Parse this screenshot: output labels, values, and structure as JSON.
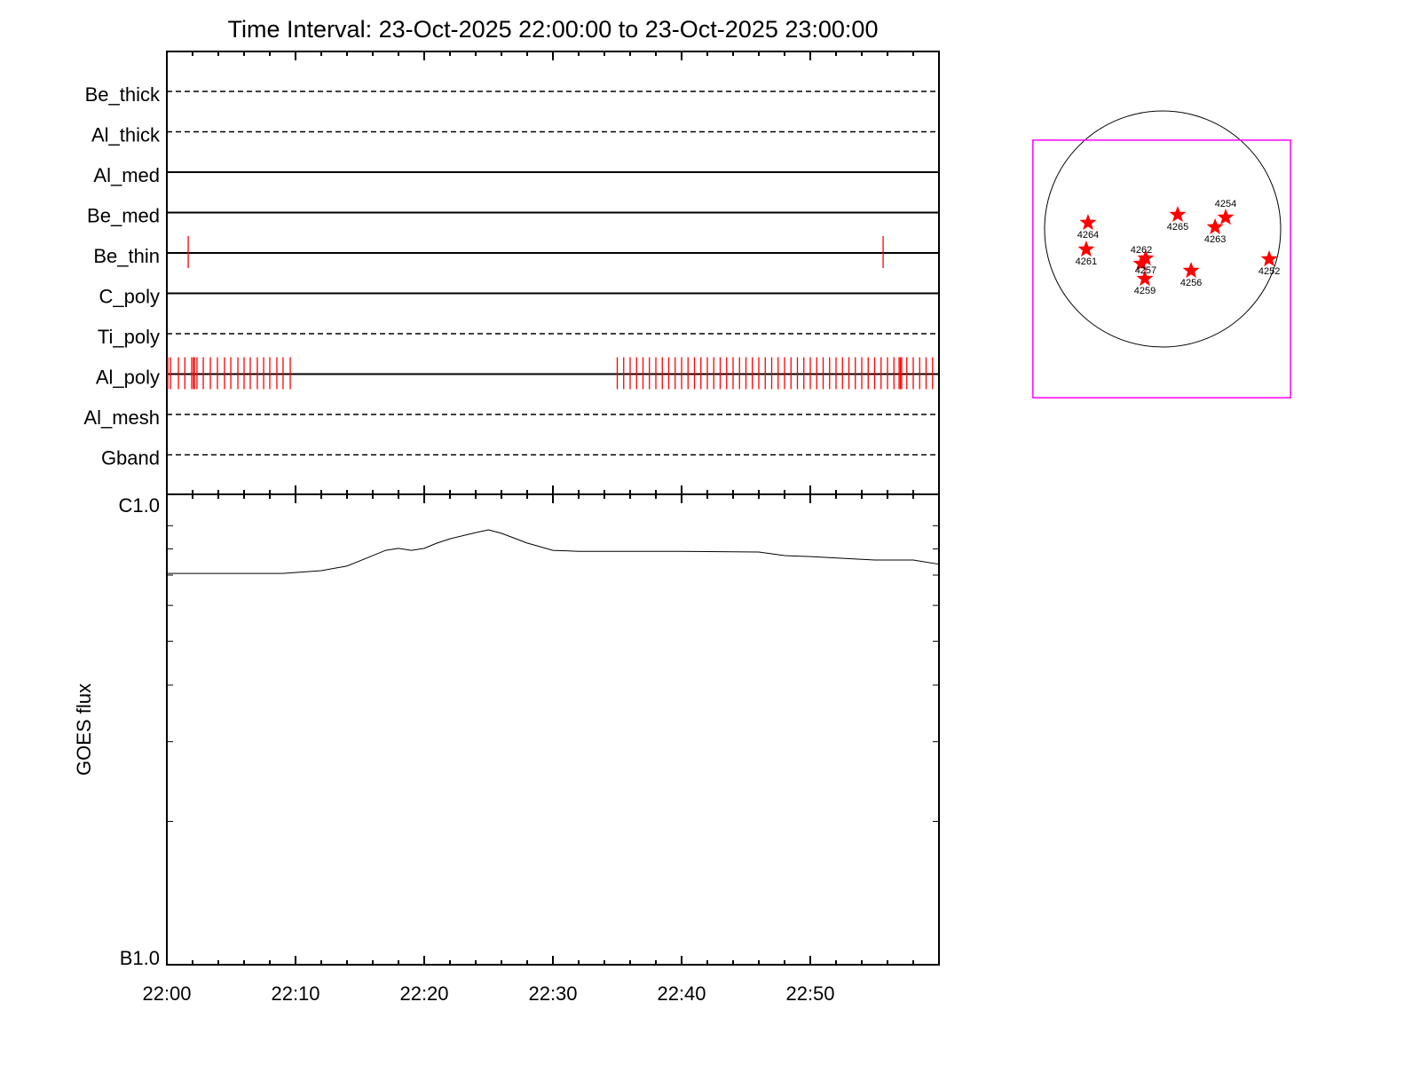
{
  "chart_data": [
    {
      "type": "table",
      "title": "Time Interval: 23-Oct-2025 22:00:00 to 23-Oct-2025 23:00:00",
      "xlim_minutes": [
        0,
        60
      ],
      "x_start": "22:00",
      "xtick_labels": [
        "22:00",
        "22:10",
        "22:20",
        "22:30",
        "22:40",
        "22:50"
      ],
      "filters": [
        {
          "name": "Be_thick",
          "style": "dashed",
          "obs_minutes": []
        },
        {
          "name": "Al_thick",
          "style": "dashed",
          "obs_minutes": []
        },
        {
          "name": "Al_med",
          "style": "solid",
          "obs_minutes": []
        },
        {
          "name": "Be_med",
          "style": "solid",
          "obs_minutes": []
        },
        {
          "name": "Be_thin",
          "style": "solid",
          "obs_minutes": [
            1.66,
            55.66
          ]
        },
        {
          "name": "C_poly",
          "style": "solid",
          "obs_minutes": []
        },
        {
          "name": "Ti_poly",
          "style": "dashed",
          "obs_minutes": []
        },
        {
          "name": "Al_poly",
          "style": "solid",
          "obs_minutes": [
            0.07,
            0.28,
            0.9,
            1.4,
            1.93,
            2.07,
            2.14,
            2.34,
            2.83,
            3.38,
            3.93,
            4.48,
            4.97,
            5.52,
            6.0,
            6.48,
            7.03,
            7.52,
            8.0,
            8.55,
            9.03,
            9.59,
            35.0,
            35.5,
            36.0,
            36.5,
            37.0,
            37.5,
            38.0,
            38.5,
            39.0,
            39.5,
            40.0,
            40.5,
            41.0,
            41.5,
            42.0,
            42.5,
            43.0,
            43.5,
            44.0,
            44.5,
            45.0,
            45.5,
            46.0,
            46.5,
            47.0,
            47.5,
            48.0,
            48.5,
            49.0,
            49.5,
            50.0,
            50.5,
            51.0,
            51.5,
            52.0,
            52.5,
            53.0,
            53.5,
            54.0,
            54.5,
            55.0,
            55.5,
            56.0,
            56.5,
            56.9,
            57.0,
            57.1,
            57.5,
            58.0,
            58.5,
            59.0,
            59.5
          ]
        },
        {
          "name": "Al_mesh",
          "style": "dashed",
          "obs_minutes": []
        },
        {
          "name": "Gband",
          "style": "dashed",
          "obs_minutes": []
        }
      ]
    },
    {
      "type": "line",
      "ylabel": "GOES flux",
      "yscale": "log",
      "ylim": [
        1e-07,
        1e-06
      ],
      "ytick_labels": [
        "B1.0",
        "C1.0"
      ],
      "x_minutes": [
        0,
        9,
        12,
        14,
        16,
        17,
        18,
        19,
        20,
        21,
        22,
        24,
        25,
        26,
        28,
        30,
        32,
        40,
        46,
        48,
        50,
        55,
        58,
        60
      ],
      "flux": [
        7.06e-07,
        7.06e-07,
        7.16e-07,
        7.33e-07,
        7.73e-07,
        7.94e-07,
        8.02e-07,
        7.94e-07,
        8.02e-07,
        8.24e-07,
        8.42e-07,
        8.69e-07,
        8.81e-07,
        8.66e-07,
        8.24e-07,
        7.94e-07,
        7.9e-07,
        7.9e-07,
        7.87e-07,
        7.73e-07,
        7.69e-07,
        7.56e-07,
        7.56e-07,
        7.4e-07
      ],
      "color": "#000000"
    },
    {
      "type": "scatter",
      "description_units": "arcsec",
      "disk_radius_arcsec": 970,
      "fov_x": [
        -1066,
        1051
      ],
      "fov_y": [
        -1387,
        730
      ],
      "fov_color": "#ff00ff",
      "marker_color": "#ff0000",
      "regions": [
        {
          "label": "4264",
          "x": -613,
          "y": 51
        },
        {
          "label": "4261",
          "x": -628,
          "y": -168
        },
        {
          "label": "4265",
          "x": 124,
          "y": 117
        },
        {
          "label": "4263",
          "x": 431,
          "y": 15
        },
        {
          "label": "4254",
          "x": 518,
          "y": 95
        },
        {
          "label": "4257",
          "x": -139,
          "y": -241
        },
        {
          "label": "4262",
          "x": -175,
          "y": -285
        },
        {
          "label": "4259",
          "x": -146,
          "y": -409
        },
        {
          "label": "4256",
          "x": 234,
          "y": -343
        },
        {
          "label": "4252",
          "x": 876,
          "y": -248
        }
      ]
    }
  ]
}
